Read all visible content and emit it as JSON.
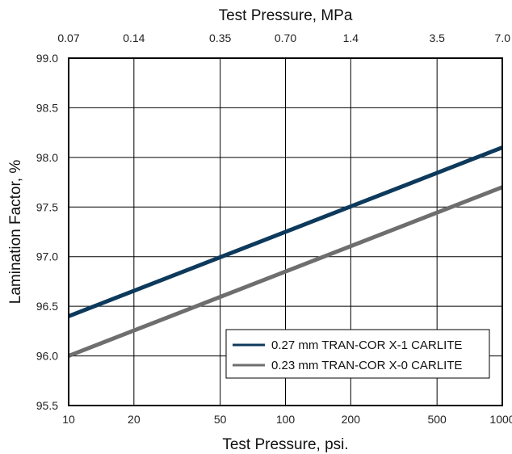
{
  "chart_data": {
    "type": "line",
    "title": "",
    "xlabel": "Test Pressure, psi.",
    "x2label": "Test Pressure, MPa",
    "ylabel": "Lamination Factor, %",
    "xscale": "log",
    "xlim": [
      10,
      1000
    ],
    "ylim": [
      95.5,
      99.0
    ],
    "grid": true,
    "legend_position": "bottom-right",
    "x_ticks": [
      {
        "value": 10,
        "label": "10"
      },
      {
        "value": 20,
        "label": "20"
      },
      {
        "value": 50,
        "label": "50"
      },
      {
        "value": 100,
        "label": "100"
      },
      {
        "value": 200,
        "label": "200"
      },
      {
        "value": 500,
        "label": "500"
      },
      {
        "value": 1000,
        "label": "1000"
      }
    ],
    "x2_ticks": [
      {
        "value": 10,
        "label": "0.07"
      },
      {
        "value": 20,
        "label": "0.14"
      },
      {
        "value": 50,
        "label": "0.35"
      },
      {
        "value": 100,
        "label": "0.70"
      },
      {
        "value": 200,
        "label": "1.4"
      },
      {
        "value": 500,
        "label": "3.5"
      },
      {
        "value": 1000,
        "label": "7.0"
      }
    ],
    "y_ticks": [
      {
        "value": 95.5,
        "label": "95.5"
      },
      {
        "value": 96.0,
        "label": "96.0"
      },
      {
        "value": 96.5,
        "label": "96.5"
      },
      {
        "value": 97.0,
        "label": "97.0"
      },
      {
        "value": 97.5,
        "label": "97.5"
      },
      {
        "value": 98.0,
        "label": "98.0"
      },
      {
        "value": 98.5,
        "label": "98.5"
      },
      {
        "value": 99.0,
        "label": "99.0"
      }
    ],
    "series": [
      {
        "name": "0.27 mm TRAN-COR X-1 CARLITE",
        "color": "#0d3a5c",
        "x": [
          10,
          1000
        ],
        "y": [
          96.4,
          98.1
        ]
      },
      {
        "name": "0.23 mm TRAN-COR X-0 CARLITE",
        "color": "#6e6e6e",
        "x": [
          10,
          1000
        ],
        "y": [
          96.0,
          97.7
        ]
      }
    ]
  }
}
